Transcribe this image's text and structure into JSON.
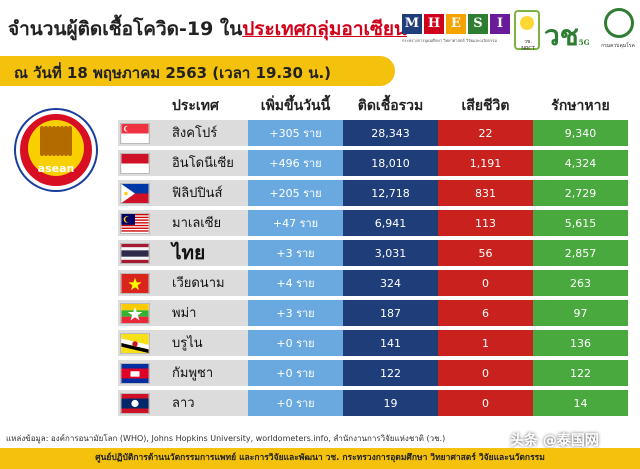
{
  "title": {
    "prefix": "จำนวนผู้ติดเชื้อโควิด-19 ใน",
    "highlight": "ประเทศกลุ่มอาเซียน"
  },
  "date_bar": "ณ วันที่ 18 พฤษภาคม 2563 (เวลา 19.30 น.)",
  "logos": {
    "mhesi_letters": [
      "M",
      "H",
      "E",
      "S",
      "I"
    ],
    "mhesi_colors": [
      "#1f3d78",
      "#d0021b",
      "#f4a300",
      "#2e7d32",
      "#6a1b9a"
    ],
    "mhesi_sub": "กระทรวงการอุดมศึกษา วิทยาศาสตร์ วิจัยและนวัตกรรม",
    "nrct_label": "วช. NRCT",
    "five_g_label": "5G",
    "moph_label": "กรมควบคุมโรค"
  },
  "asean_logo_text": "asean",
  "headers": {
    "country": "ประเทศ",
    "new_cases": "เพิ่มขึ้นวันนี้",
    "total": "ติดเชื้อรวม",
    "deaths": "เสียชีวิต",
    "recovered": "รักษาหาย"
  },
  "rows": [
    {
      "country": "สิงคโปร์",
      "flag": "singapore-flag",
      "new": "+305 ราย",
      "total": "28,343",
      "deaths": "22",
      "recovered": "9,340"
    },
    {
      "country": "อินโดนีเซีย",
      "flag": "indonesia-flag",
      "new": "+496 ราย",
      "total": "18,010",
      "deaths": "1,191",
      "recovered": "4,324"
    },
    {
      "country": "ฟิลิปปินส์",
      "flag": "philippines-flag",
      "new": "+205 ราย",
      "total": "12,718",
      "deaths": "831",
      "recovered": "2,729"
    },
    {
      "country": "มาเลเซีย",
      "flag": "malaysia-flag",
      "new": "+47 ราย",
      "total": "6,941",
      "deaths": "113",
      "recovered": "5,615"
    },
    {
      "country": "ไทย",
      "flag": "thailand-flag",
      "new": "+3 ราย",
      "total": "3,031",
      "deaths": "56",
      "recovered": "2,857"
    },
    {
      "country": "เวียดนาม",
      "flag": "vietnam-flag",
      "new": "+4 ราย",
      "total": "324",
      "deaths": "0",
      "recovered": "263"
    },
    {
      "country": "พม่า",
      "flag": "myanmar-flag",
      "new": "+3 ราย",
      "total": "187",
      "deaths": "6",
      "recovered": "97"
    },
    {
      "country": "บรูไน",
      "flag": "brunei-flag",
      "new": "+0 ราย",
      "total": "141",
      "deaths": "1",
      "recovered": "136"
    },
    {
      "country": "กัมพูชา",
      "flag": "cambodia-flag",
      "new": "+0 ราย",
      "total": "122",
      "deaths": "0",
      "recovered": "122"
    },
    {
      "country": "ลาว",
      "flag": "laos-flag",
      "new": "+0 ราย",
      "total": "19",
      "deaths": "0",
      "recovered": "14"
    }
  ],
  "colors": {
    "new_col": "#6aa9e0",
    "total_col": "#1f3d78",
    "deaths_col": "#c8211e",
    "recovered_col": "#49a83e",
    "accent_yellow": "#f4c20d"
  },
  "source": "แหล่งข้อมูล: องค์การอนามัยโลก (WHO), Johns Hopkins University, worldometers.info, สำนักงานการวิจัยแห่งชาติ (วช.)",
  "footer": "ศูนย์ปฏิบัติการด้านนวัตกรรมการแพทย์ และการวิจัยและพัฒนา  วช.  กระทรวงการอุดมศึกษา วิทยาศาสตร์ วิจัยและนวัตกรรม",
  "watermark": "头条 @泰国网"
}
